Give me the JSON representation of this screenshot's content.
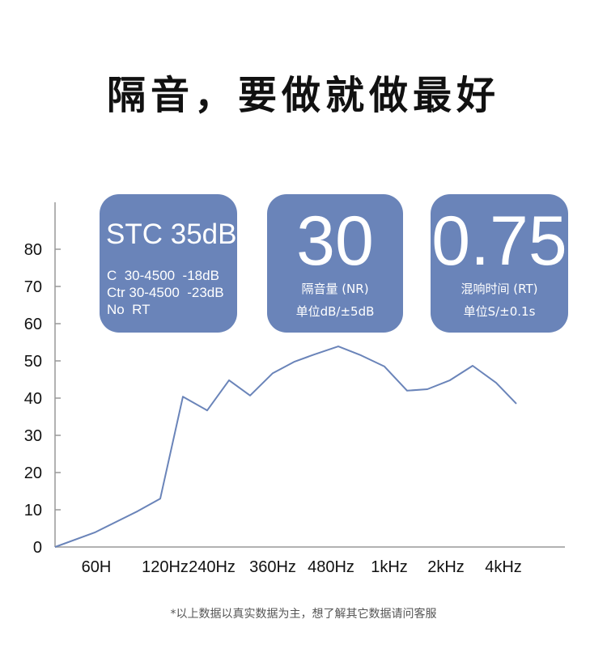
{
  "title": "隔音，要做就做最好",
  "cards": [
    {
      "headline": "STC 35dB",
      "lines": [
        "C  30-4500  -18dB",
        "Ctr 30-4500  -23dB",
        "No  RT"
      ]
    },
    {
      "headline": "30",
      "label": "隔音量 (NR)",
      "unit": "单位dB/±5dB"
    },
    {
      "headline": "0.75",
      "label": "混响时间 (RT)",
      "unit": "单位S/±0.1s"
    }
  ],
  "colors": {
    "card": "#6a84b9",
    "line": "#6a84b9",
    "axis": "#999999"
  },
  "chart_data": {
    "type": "line",
    "title": "",
    "xlabel": "",
    "ylabel": "",
    "ylim": [
      0,
      80
    ],
    "yticks": [
      "0",
      "10",
      "20",
      "30",
      "40",
      "50",
      "60",
      "70",
      "80"
    ],
    "xtick_labels": [
      "60H",
      "120Hz",
      "240Hz",
      "360Hz",
      "480Hz",
      "1kHz",
      "2kHz",
      "4kHz"
    ],
    "grid": false,
    "series": [
      {
        "values": [
          0,
          3.9,
          9.6,
          13.0,
          40.4,
          36.7,
          44.8,
          40.7,
          46.7,
          49.8,
          51.7,
          53.9,
          51.5,
          48.5,
          42.0,
          42.4,
          44.8,
          48.7,
          44.1,
          38.5
        ]
      }
    ]
  },
  "footnote": "*以上数据以真实数据为主，想了解其它数据请问客服"
}
